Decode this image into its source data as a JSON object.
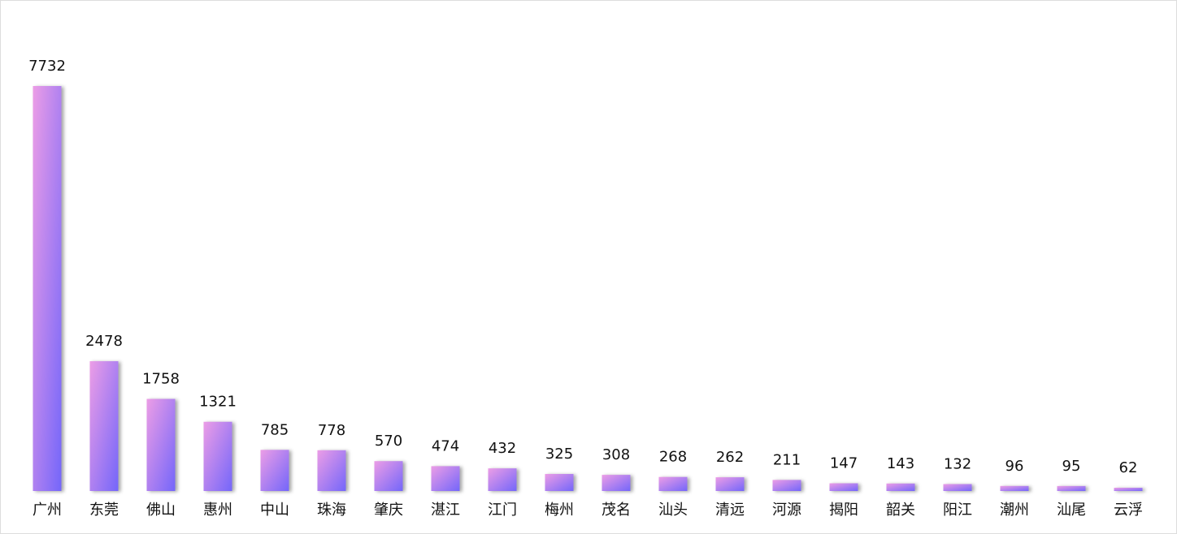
{
  "chart_data": {
    "type": "bar",
    "categories": [
      "广州",
      "东莞",
      "佛山",
      "惠州",
      "中山",
      "珠海",
      "肇庆",
      "湛江",
      "江门",
      "梅州",
      "茂名",
      "汕头",
      "清远",
      "河源",
      "揭阳",
      "韶关",
      "阳江",
      "潮州",
      "汕尾",
      "云浮"
    ],
    "values": [
      7732,
      2478,
      1758,
      1321,
      785,
      778,
      570,
      474,
      432,
      325,
      308,
      268,
      262,
      211,
      147,
      143,
      132,
      96,
      95,
      62
    ],
    "gradient": [
      "#ec9de6",
      "#7466fa"
    ]
  }
}
